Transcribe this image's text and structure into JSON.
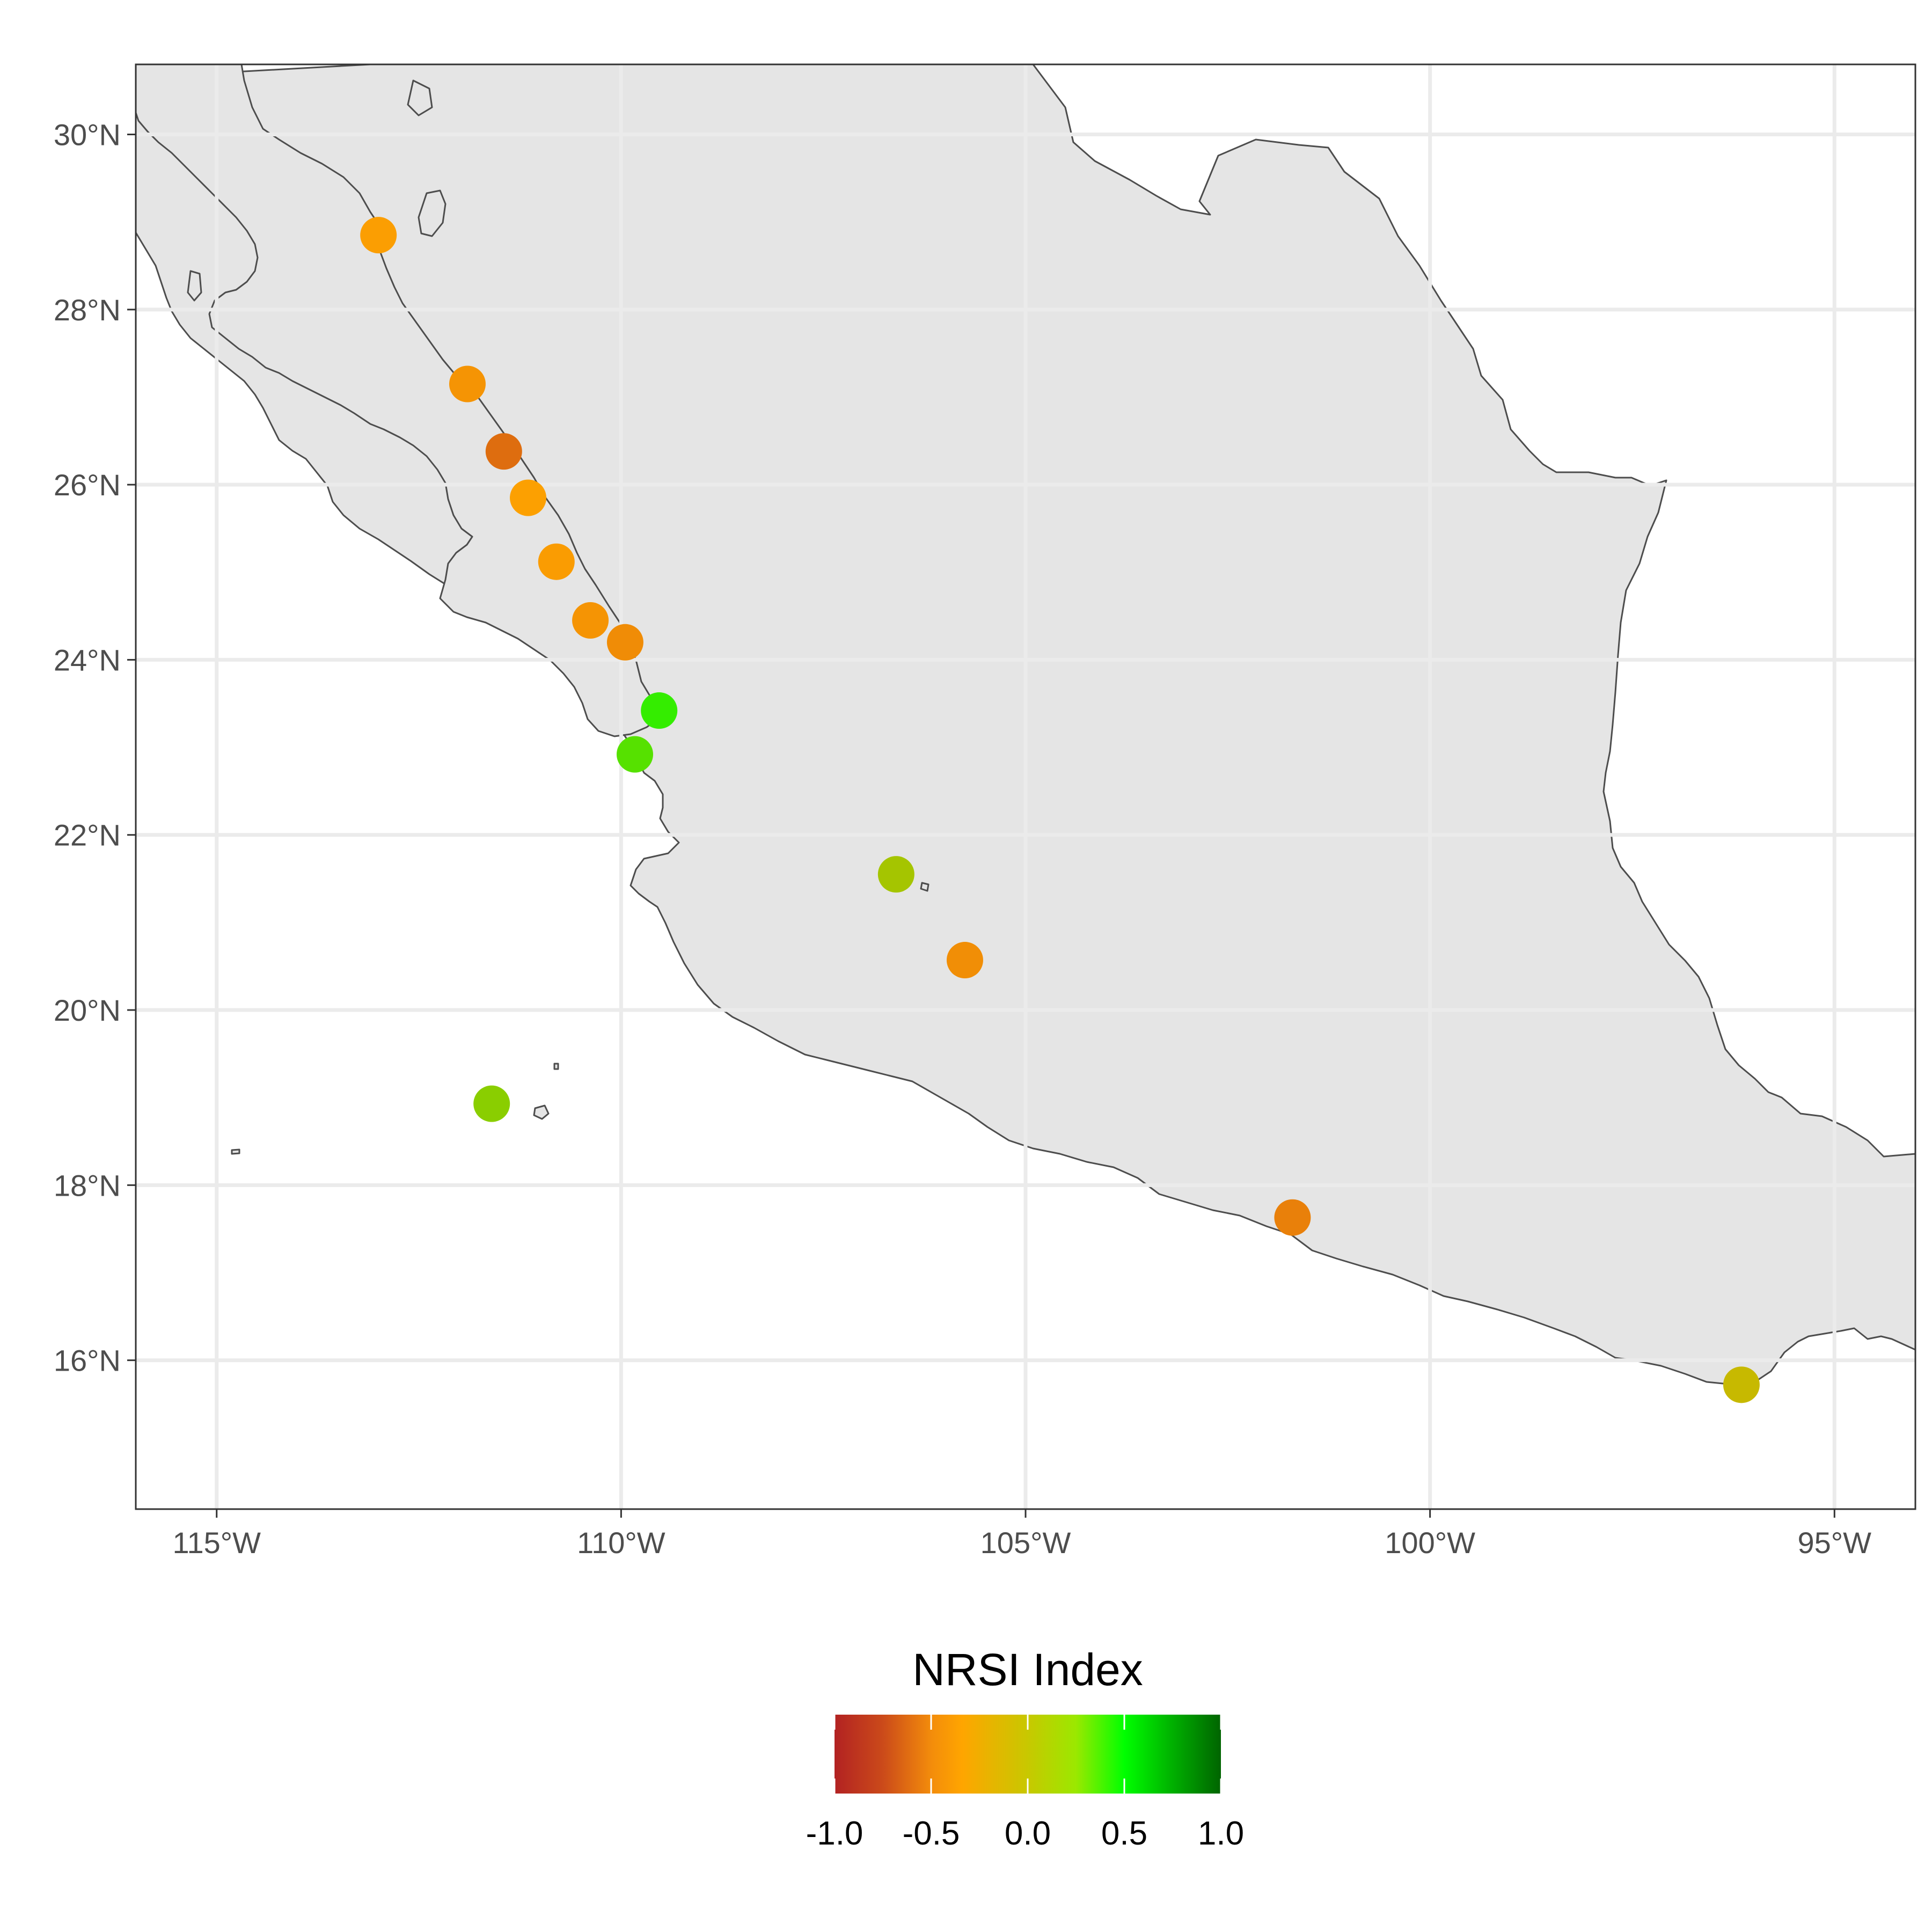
{
  "map": {
    "region": "Western Mexico / Gulf of California",
    "lon_range": [
      -116,
      -94
    ],
    "lat_range": [
      14.3,
      30.8
    ],
    "x_ticks": [
      {
        "value": -115,
        "label": "115°W"
      },
      {
        "value": -110,
        "label": "110°W"
      },
      {
        "value": -105,
        "label": "105°W"
      },
      {
        "value": -100,
        "label": "100°W"
      },
      {
        "value": -95,
        "label": "95°W"
      }
    ],
    "y_ticks": [
      {
        "value": 16,
        "label": "16°N"
      },
      {
        "value": 18,
        "label": "18°N"
      },
      {
        "value": 20,
        "label": "20°N"
      },
      {
        "value": 22,
        "label": "22°N"
      },
      {
        "value": 24,
        "label": "24°N"
      },
      {
        "value": 26,
        "label": "26°N"
      },
      {
        "value": 28,
        "label": "28°N"
      },
      {
        "value": 30,
        "label": "30°N"
      }
    ],
    "grid": true,
    "land_color": "#e5e5e5",
    "coast_color": "#4d4d4d"
  },
  "sites": [
    {
      "lon": -113.0,
      "lat": 28.85,
      "nrsi": -0.37
    },
    {
      "lon": -111.9,
      "lat": 27.15,
      "nrsi": -0.42
    },
    {
      "lon": -111.45,
      "lat": 26.38,
      "nrsi": -0.62
    },
    {
      "lon": -111.15,
      "lat": 25.85,
      "nrsi": -0.36
    },
    {
      "lon": -110.8,
      "lat": 25.12,
      "nrsi": -0.38
    },
    {
      "lon": -110.38,
      "lat": 24.45,
      "nrsi": -0.42
    },
    {
      "lon": -109.95,
      "lat": 24.2,
      "nrsi": -0.46
    },
    {
      "lon": -109.53,
      "lat": 23.42,
      "nrsi": 0.33
    },
    {
      "lon": -109.83,
      "lat": 22.92,
      "nrsi": 0.22
    },
    {
      "lon": -106.6,
      "lat": 21.55,
      "nrsi": -0.04
    },
    {
      "lon": -105.75,
      "lat": 20.57,
      "nrsi": -0.45
    },
    {
      "lon": -111.6,
      "lat": 18.93,
      "nrsi": 0.05
    },
    {
      "lon": -101.7,
      "lat": 17.63,
      "nrsi": -0.52
    },
    {
      "lon": -96.15,
      "lat": 15.72,
      "nrsi": -0.15
    }
  ],
  "legend": {
    "title": "NRSI Index",
    "scale": [
      "#b22222",
      "#ffa500",
      "#00ff00",
      "#006400"
    ],
    "range": [
      -1.0,
      1.0
    ],
    "ticks": [
      {
        "value": -1.0,
        "label": "-1.0"
      },
      {
        "value": -0.5,
        "label": "-0.5"
      },
      {
        "value": 0.0,
        "label": "0.0"
      },
      {
        "value": 0.5,
        "label": "0.5"
      },
      {
        "value": 1.0,
        "label": "1.0"
      }
    ]
  }
}
